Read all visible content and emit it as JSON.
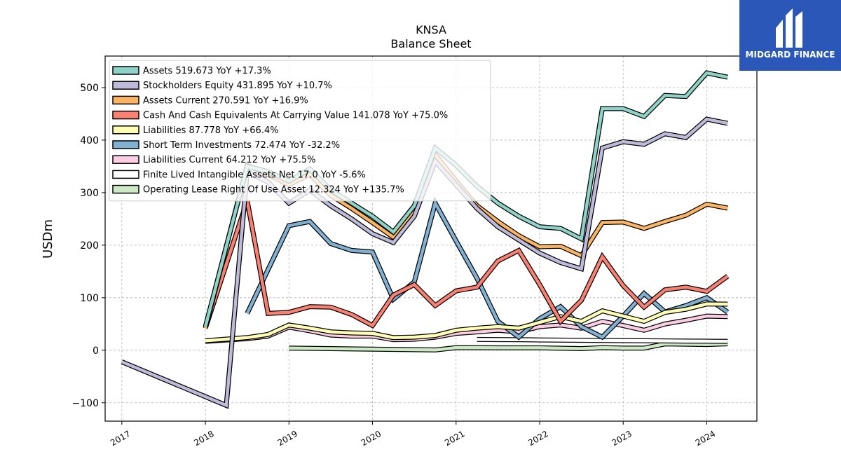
{
  "logo": {
    "text": "MIDGARD FINANCE",
    "icon": "midgard-logo-icon"
  },
  "chart_data": {
    "type": "line",
    "title": "KNSA",
    "subtitle": "Balance  Sheet",
    "ylabel": "USDm",
    "xlabel": "",
    "xlim": [
      2016.8,
      2024.6
    ],
    "ylim": [
      -135,
      560
    ],
    "yticks": [
      -100,
      0,
      100,
      200,
      300,
      400,
      500
    ],
    "ytick_labels": [
      "−100",
      "0",
      "100",
      "200",
      "300",
      "400",
      "500"
    ],
    "xticks": [
      2017,
      2018,
      2019,
      2020,
      2021,
      2022,
      2023,
      2024
    ],
    "xtick_labels": [
      "2017",
      "2018",
      "2019",
      "2020",
      "2021",
      "2022",
      "2023",
      "2024"
    ],
    "grid": true,
    "legend_position": "top-left",
    "series": [
      {
        "name": "Assets",
        "legend": "Assets  519.673 YoY +17.3%",
        "color": "#8dd3c7",
        "x": [
          2018.0,
          2018.5,
          2018.75,
          2019.0,
          2019.25,
          2019.5,
          2019.75,
          2020.0,
          2020.25,
          2020.5,
          2020.75,
          2021.0,
          2021.25,
          2021.5,
          2021.75,
          2022.0,
          2022.25,
          2022.5,
          2022.75,
          2023.0,
          2023.25,
          2023.5,
          2023.75,
          2024.0,
          2024.25
        ],
        "y": [
          45,
          350,
          340,
          322,
          345,
          305,
          280,
          255,
          225,
          275,
          385,
          352,
          312,
          280,
          255,
          235,
          232,
          212,
          460,
          460,
          445,
          485,
          483,
          528,
          519.673
        ]
      },
      {
        "name": "Stockholders Equity",
        "legend": "Stockholders Equity  431.895 YoY +10.7%",
        "color": "#bebada",
        "x": [
          2017.0,
          2018.25,
          2018.5,
          2018.75,
          2019.0,
          2019.25,
          2019.5,
          2019.75,
          2020.0,
          2020.25,
          2020.5,
          2020.75,
          2021.0,
          2021.25,
          2021.5,
          2021.75,
          2022.0,
          2022.25,
          2022.5,
          2022.75,
          2023.0,
          2023.25,
          2023.5,
          2023.75,
          2024.0,
          2024.25
        ],
        "y": [
          -22,
          -105,
          340,
          320,
          280,
          305,
          275,
          250,
          222,
          205,
          255,
          360,
          315,
          270,
          235,
          210,
          185,
          167,
          155,
          385,
          397,
          392,
          412,
          405,
          440,
          431.895
        ]
      },
      {
        "name": "Assets Current",
        "legend": "Assets Current  270.591 YoY +16.9%",
        "color": "#fdb462",
        "x": [
          2018.0,
          2018.5,
          2018.75,
          2019.0,
          2019.25,
          2019.5,
          2019.75,
          2020.0,
          2020.25,
          2020.5,
          2020.75,
          2021.0,
          2021.25,
          2021.5,
          2021.75,
          2022.0,
          2022.25,
          2022.5,
          2022.75,
          2023.0,
          2023.25,
          2023.5,
          2023.75,
          2024.0,
          2024.25
        ],
        "y": [
          42,
          352,
          335,
          315,
          335,
          295,
          270,
          243,
          215,
          265,
          372,
          322,
          275,
          245,
          218,
          197,
          198,
          180,
          243,
          244,
          232,
          245,
          257,
          278,
          270.591
        ]
      },
      {
        "name": "Cash And Cash Equivalents At Carrying Value",
        "legend": "Cash And Cash Equivalents At Carrying Value  141.078 YoY +75.0%",
        "color": "#fb8072",
        "x": [
          2018.0,
          2018.5,
          2018.75,
          2019.0,
          2019.25,
          2019.5,
          2019.75,
          2020.0,
          2020.25,
          2020.5,
          2020.75,
          2021.0,
          2021.25,
          2021.5,
          2021.75,
          2022.0,
          2022.25,
          2022.5,
          2022.75,
          2023.0,
          2023.25,
          2023.5,
          2023.75,
          2024.0,
          2024.25
        ],
        "y": [
          42,
          285,
          70,
          72,
          83,
          82,
          68,
          47,
          105,
          125,
          85,
          113,
          120,
          170,
          190,
          125,
          55,
          95,
          178,
          123,
          82,
          115,
          120,
          112,
          141.078
        ]
      },
      {
        "name": "Liabilities",
        "legend": "Liabilities  87.778 YoY +66.4%",
        "color": "#ffffb3",
        "x": [
          2018.0,
          2018.5,
          2018.75,
          2019.0,
          2019.25,
          2019.5,
          2019.75,
          2020.0,
          2020.25,
          2020.5,
          2020.75,
          2021.0,
          2021.25,
          2021.5,
          2021.75,
          2022.0,
          2022.25,
          2022.5,
          2022.75,
          2023.0,
          2023.25,
          2023.5,
          2023.75,
          2024.0,
          2024.25
        ],
        "y": [
          18,
          24,
          30,
          48,
          42,
          35,
          33,
          32,
          24,
          25,
          28,
          38,
          42,
          45,
          42,
          53,
          64,
          55,
          75,
          65,
          55,
          72,
          78,
          88,
          87.778
        ]
      },
      {
        "name": "Short Term Investments",
        "legend": "Short Term Investments  72.474 YoY -32.2%",
        "color": "#80b1d3",
        "x": [
          2018.5,
          2019.0,
          2019.25,
          2019.5,
          2019.75,
          2020.0,
          2020.25,
          2020.5,
          2020.75,
          2021.0,
          2021.25,
          2021.5,
          2021.75,
          2022.0,
          2022.25,
          2022.5,
          2022.75,
          2023.0,
          2023.25,
          2023.5,
          2023.75,
          2024.0,
          2024.25
        ],
        "y": [
          70,
          237,
          245,
          203,
          190,
          187,
          97,
          130,
          280,
          208,
          137,
          55,
          25,
          60,
          83,
          45,
          25,
          65,
          108,
          73,
          85,
          100,
          72.474
        ]
      },
      {
        "name": "Liabilities Current",
        "legend": "Liabilities Current  64.212 YoY +75.5%",
        "color": "#fccde5",
        "x": [
          2018.0,
          2018.5,
          2018.75,
          2019.0,
          2019.25,
          2019.5,
          2019.75,
          2020.0,
          2020.25,
          2020.5,
          2020.75,
          2021.0,
          2021.25,
          2021.5,
          2021.75,
          2022.0,
          2022.25,
          2022.5,
          2022.75,
          2023.0,
          2023.25,
          2023.5,
          2023.75,
          2024.0,
          2024.25
        ],
        "y": [
          17,
          22,
          27,
          44,
          37,
          29,
          27,
          27,
          20,
          21,
          25,
          32,
          35,
          38,
          35,
          45,
          48,
          42,
          55,
          47,
          38,
          50,
          57,
          65,
          64.212
        ]
      },
      {
        "name": "Finite Lived Intangible Assets Net",
        "legend": "Finite Lived Intangible Assets Net  17.0 YoY -5.6%",
        "color": "#ffffff",
        "x": [
          2021.25,
          2021.5,
          2021.75,
          2022.0,
          2022.25,
          2022.5,
          2022.75,
          2023.0,
          2023.25,
          2023.5,
          2023.75,
          2024.0,
          2024.25
        ],
        "y": [
          20.5,
          20.3,
          20.0,
          19.6,
          19.2,
          18.9,
          18.6,
          18.3,
          18.0,
          17.8,
          17.5,
          17.2,
          17.0
        ]
      },
      {
        "name": "Operating Lease Right Of Use Asset",
        "legend": "Operating Lease Right Of Use Asset  12.324 YoY +135.7%",
        "color": "#ccebc5",
        "x": [
          2019.0,
          2019.5,
          2020.0,
          2020.5,
          2020.75,
          2021.0,
          2021.5,
          2022.0,
          2022.5,
          2022.75,
          2023.0,
          2023.25,
          2023.5,
          2024.0,
          2024.25
        ],
        "y": [
          4,
          3,
          2,
          1,
          0.5,
          5,
          4.5,
          4.5,
          3,
          5,
          4,
          4,
          12,
          11,
          12.324
        ]
      }
    ]
  }
}
